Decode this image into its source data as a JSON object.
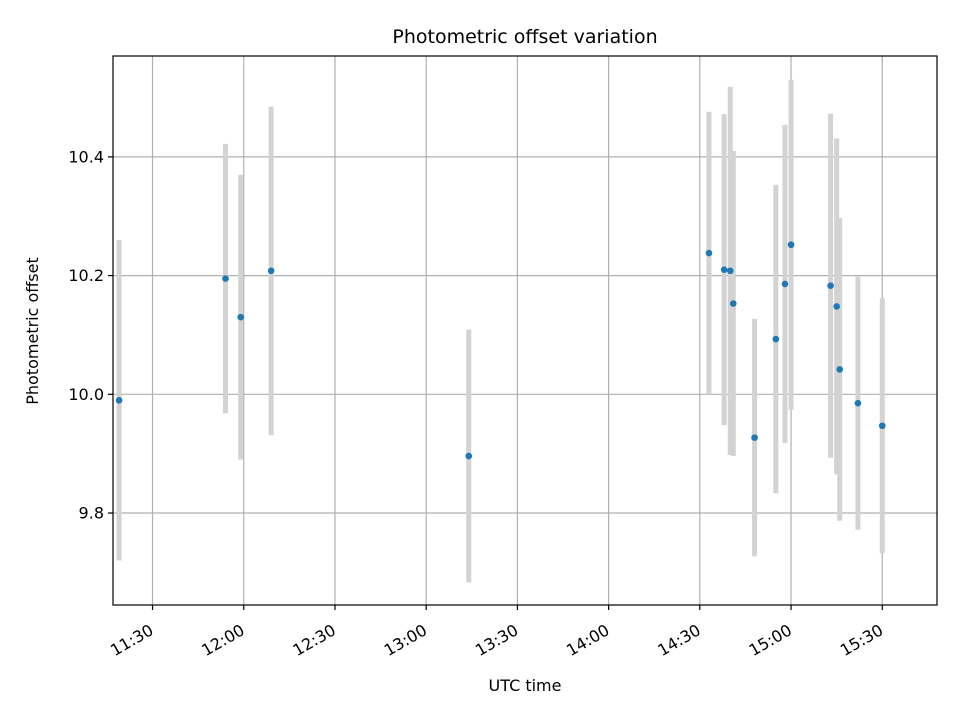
{
  "chart_data": {
    "type": "scatter",
    "title": "Photometric offset variation",
    "xlabel": "UTC time",
    "ylabel": "Photometric offset",
    "x_unit": "hh:mm",
    "xlim": [
      "11:17",
      "15:48"
    ],
    "ylim": [
      9.645,
      10.57
    ],
    "grid": true,
    "x_ticks": [
      "11:30",
      "12:00",
      "12:30",
      "13:00",
      "13:30",
      "14:00",
      "14:30",
      "15:00",
      "15:30"
    ],
    "y_ticks": [
      9.8,
      10.0,
      10.2,
      10.4
    ],
    "y_tick_labels": [
      "9.8",
      "10.0",
      "10.2",
      "10.4"
    ],
    "colors": {
      "points": "#1f77b4",
      "errorbars": "#d3d3d3",
      "grid": "#b0b0b0"
    },
    "points": [
      {
        "x": "11:19",
        "y": 9.99,
        "err": 0.27
      },
      {
        "x": "11:54",
        "y": 10.195,
        "err": 0.227
      },
      {
        "x": "11:59",
        "y": 10.13,
        "err": 0.24
      },
      {
        "x": "12:09",
        "y": 10.208,
        "err": 0.277
      },
      {
        "x": "13:14",
        "y": 9.896,
        "err": 0.213
      },
      {
        "x": "14:33",
        "y": 10.238,
        "err": 0.238
      },
      {
        "x": "14:38",
        "y": 10.21,
        "err": 0.262
      },
      {
        "x": "14:40",
        "y": 10.208,
        "err": 0.31
      },
      {
        "x": "14:41",
        "y": 10.153,
        "err": 0.257
      },
      {
        "x": "14:48",
        "y": 9.927,
        "err": 0.2
      },
      {
        "x": "14:55",
        "y": 10.093,
        "err": 0.26
      },
      {
        "x": "14:58",
        "y": 10.186,
        "err": 0.268
      },
      {
        "x": "15:00",
        "y": 10.252,
        "err": 0.278
      },
      {
        "x": "15:13",
        "y": 10.183,
        "err": 0.29
      },
      {
        "x": "15:15",
        "y": 10.148,
        "err": 0.283
      },
      {
        "x": "15:16",
        "y": 10.042,
        "err": 0.255
      },
      {
        "x": "15:22",
        "y": 9.985,
        "err": 0.213
      },
      {
        "x": "15:30",
        "y": 9.947,
        "err": 0.215
      }
    ]
  }
}
